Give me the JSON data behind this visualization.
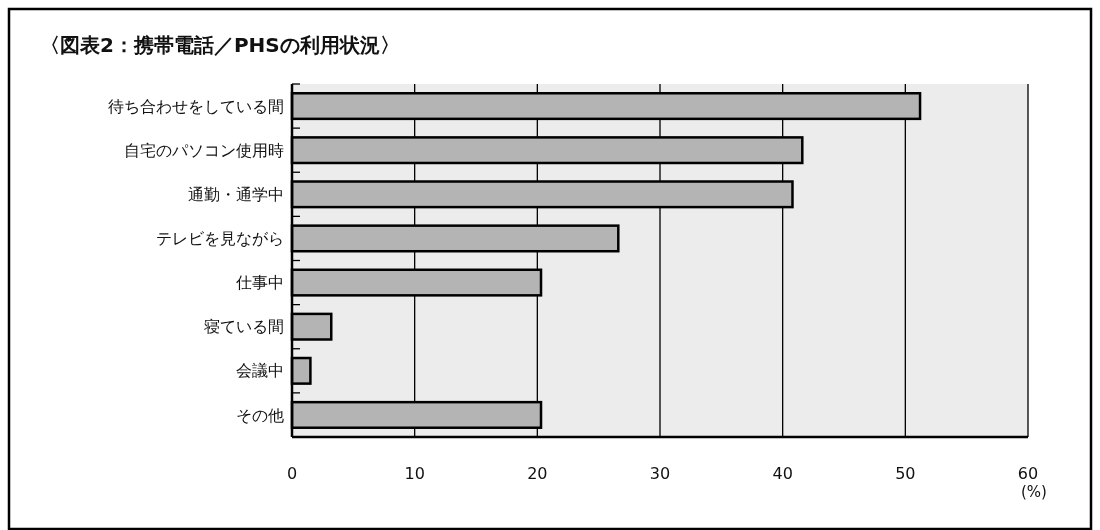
{
  "chart_data": {
    "type": "bar",
    "orientation": "horizontal",
    "title": "〈図表2：携帯電話／PHSの利用状況〉",
    "xlabel": "(%)",
    "categories": [
      "待ち合わせをしている間",
      "自宅のパソコン使用時",
      "通勤・通学中",
      "テレビを見ながら",
      "仕事中",
      "寝ている間",
      "会議中",
      "その他"
    ],
    "values": [
      51.2,
      41.6,
      40.8,
      26.6,
      20.3,
      3.2,
      1.5,
      20.3
    ],
    "color": "#b4b4b4",
    "xlim": [
      0,
      60
    ],
    "xticks": [
      0,
      10,
      20,
      30,
      40,
      50,
      60
    ],
    "grid": "x"
  }
}
